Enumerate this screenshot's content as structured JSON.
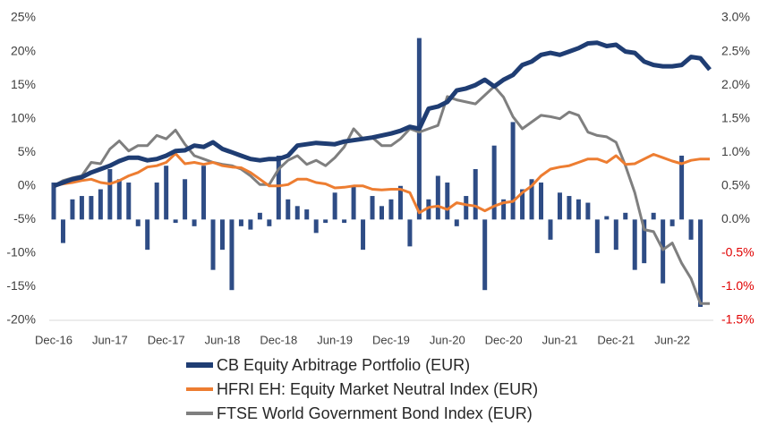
{
  "chart_data": {
    "type": "combo",
    "categories": [
      "Dec-16",
      null,
      null,
      null,
      null,
      null,
      "Jun-17",
      null,
      null,
      null,
      null,
      null,
      "Dec-17",
      null,
      null,
      null,
      null,
      null,
      "Jun-18",
      null,
      null,
      null,
      null,
      null,
      "Dec-18",
      null,
      null,
      null,
      null,
      null,
      "Jun-19",
      null,
      null,
      null,
      null,
      null,
      "Dec-19",
      null,
      null,
      null,
      null,
      null,
      "Jun-20",
      null,
      null,
      null,
      null,
      null,
      "Dec-20",
      null,
      null,
      null,
      null,
      null,
      "Jun-21",
      null,
      null,
      null,
      null,
      null,
      "Dec-21",
      null,
      null,
      null,
      null,
      null,
      "Jun-22",
      null,
      null,
      null,
      null
    ],
    "ylim": [
      -20,
      25
    ],
    "yticks": [
      {
        "value": -20,
        "label": "-20%"
      },
      {
        "value": -15,
        "label": "-15%"
      },
      {
        "value": -10,
        "label": "-10%"
      },
      {
        "value": -5,
        "label": "-5%"
      },
      {
        "value": 0,
        "label": "0%"
      },
      {
        "value": 5,
        "label": "5%"
      },
      {
        "value": 10,
        "label": "10%"
      },
      {
        "value": 15,
        "label": "15%"
      },
      {
        "value": 20,
        "label": "20%"
      },
      {
        "value": 25,
        "label": "25%"
      }
    ],
    "y2lim": [
      -1.5,
      3.0
    ],
    "y2ticks": [
      {
        "value": -1.5,
        "label": "-1.5%"
      },
      {
        "value": -1.0,
        "label": "-1.0%"
      },
      {
        "value": -0.5,
        "label": "-0.5%"
      },
      {
        "value": 0,
        "label": "0.0%"
      },
      {
        "value": 0.5,
        "label": "0.5%"
      },
      {
        "value": 1.0,
        "label": "1.0%"
      },
      {
        "value": 1.5,
        "label": "1.5%"
      },
      {
        "value": 2.0,
        "label": "2.0%"
      },
      {
        "value": 2.5,
        "label": "2.5%"
      },
      {
        "value": 3.0,
        "label": "3.0%"
      }
    ],
    "y2_negative_tick_color": "#e00000",
    "legend": "bottom",
    "series": [
      {
        "name": "CB Equity Arbitrage Portfolio (EUR)",
        "type": "line",
        "color": "#1f3d73",
        "values": [
          0,
          0.5,
          1,
          1.3,
          2,
          2.5,
          3,
          3.7,
          4.2,
          4.2,
          3.8,
          4,
          4.5,
          5.2,
          5.3,
          6,
          5.8,
          6.5,
          5.5,
          5,
          4.5,
          4,
          3.8,
          4,
          4,
          4.5,
          6,
          6.2,
          6.4,
          6.3,
          6.2,
          6.6,
          6.8,
          7,
          7.2,
          7.5,
          7.8,
          8.2,
          8.8,
          8.5,
          11.5,
          11.8,
          12.5,
          14.2,
          14.5,
          15,
          15.8,
          14.8,
          15.8,
          16.5,
          18,
          18.5,
          19.5,
          19.8,
          19.5,
          20,
          20.5,
          21.2,
          21.3,
          20.8,
          21,
          20,
          19.8,
          18.5,
          18,
          17.8,
          17.8,
          18,
          19.2,
          19,
          17.3
        ]
      },
      {
        "name": "HFRI EH: Equity Market Neutral Index (EUR)",
        "type": "line",
        "color": "#ed7d31",
        "values": [
          0,
          0.3,
          0.5,
          0.8,
          1,
          0.5,
          0.3,
          0.8,
          1.5,
          2,
          2.8,
          3,
          3.5,
          4.8,
          3.3,
          3.5,
          3.2,
          3.5,
          3,
          2.8,
          2.7,
          2,
          1,
          0,
          0,
          0.2,
          1,
          1,
          0.5,
          0.3,
          -0.3,
          -0.2,
          0,
          0,
          -0.5,
          -0.6,
          -0.5,
          -0.5,
          -1,
          -4,
          -3.2,
          -3,
          -3.5,
          -2.5,
          -2.8,
          -3,
          -3.7,
          -3,
          -2.5,
          -2.3,
          -1,
          0,
          1.5,
          2.5,
          2.8,
          3,
          3.5,
          4,
          4,
          3.5,
          4.5,
          3.2,
          3.3,
          4,
          4.7,
          4.2,
          3.7,
          3.3,
          3.8,
          4,
          4
        ]
      },
      {
        "name": "FTSE World Government Bond Index (EUR)",
        "type": "line",
        "color": "#7f7f7f",
        "values": [
          0,
          0.8,
          1.2,
          1.5,
          3.5,
          3.3,
          5.5,
          6.7,
          5.2,
          6,
          6,
          7.5,
          7,
          8.3,
          6.2,
          4.5,
          4,
          3.5,
          3.2,
          3,
          2.5,
          1.5,
          0.2,
          0.2,
          2.5,
          3.8,
          4.5,
          3.2,
          3.8,
          3,
          4.2,
          5.8,
          8.5,
          7,
          7.2,
          6,
          6,
          7,
          8.5,
          8,
          8.5,
          9,
          13.3,
          12.8,
          12.5,
          12.2,
          13.5,
          14.8,
          13.2,
          10.3,
          8.5,
          9.5,
          10.5,
          10.3,
          10,
          11,
          10.5,
          8,
          7.5,
          7.3,
          6.5,
          3,
          -1,
          -6.5,
          -6.8,
          -9.5,
          -8.5,
          -11.5,
          -13.8,
          -17.5,
          -17.5
        ]
      },
      {
        "type": "bar",
        "axis": "y2",
        "color": "#2e4c85",
        "values": [
          0.55,
          -0.35,
          0.3,
          0.35,
          0.35,
          0.45,
          0.75,
          0.6,
          0.55,
          -0.1,
          -0.45,
          0.55,
          0.8,
          -0.05,
          0.6,
          -0.1,
          0.8,
          -0.75,
          -0.45,
          -1.05,
          -0.1,
          -0.15,
          0.1,
          -0.1,
          0.95,
          0.3,
          0.2,
          0.15,
          -0.2,
          -0.05,
          0.4,
          -0.05,
          0.5,
          -0.45,
          0.35,
          0.2,
          0.3,
          0.5,
          -0.4,
          2.7,
          0.3,
          0.65,
          0.55,
          -0.1,
          0.35,
          0.75,
          -1.05,
          1.1,
          0.3,
          1.45,
          0.45,
          0.6,
          0.55,
          -0.3,
          0.4,
          0.35,
          0.3,
          0.25,
          -0.5,
          0.05,
          -0.45,
          0.1,
          -0.75,
          -0.65,
          0.1,
          -0.95,
          -0.1,
          0.95,
          -0.3,
          -1.3,
          null
        ]
      }
    ]
  }
}
